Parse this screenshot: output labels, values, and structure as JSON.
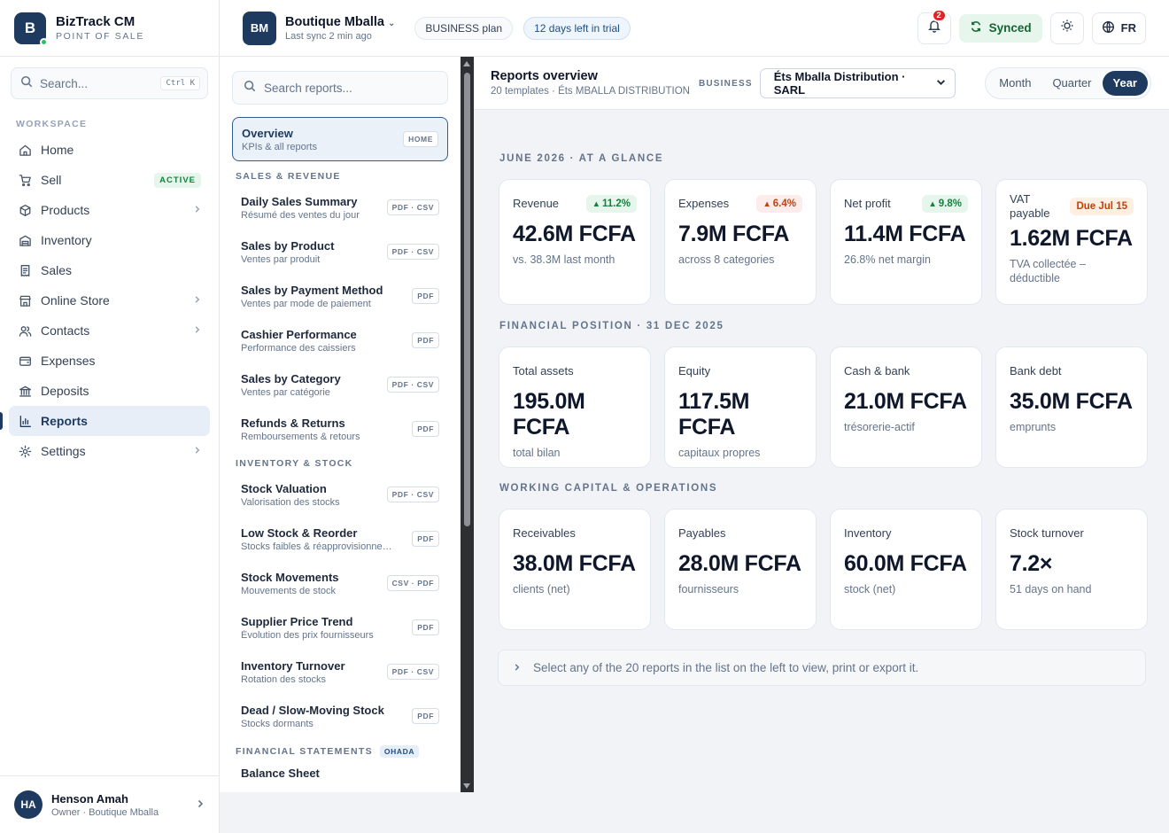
{
  "brand": {
    "logo_letter": "B",
    "name": "BizTrack CM",
    "subtitle": "POINT OF SALE"
  },
  "sidebar": {
    "search_placeholder": "Search...",
    "search_shortcut": "Ctrl K",
    "section": "WORKSPACE",
    "items": [
      {
        "label": "Home",
        "icon": "home-icon"
      },
      {
        "label": "Sell",
        "icon": "cart-icon",
        "badge": "ACTIVE"
      },
      {
        "label": "Products",
        "icon": "box-icon",
        "chevron": true
      },
      {
        "label": "Inventory",
        "icon": "warehouse-icon"
      },
      {
        "label": "Sales",
        "icon": "receipt-icon"
      },
      {
        "label": "Online Store",
        "icon": "store-icon",
        "chevron": true
      },
      {
        "label": "Contacts",
        "icon": "users-icon",
        "chevron": true
      },
      {
        "label": "Expenses",
        "icon": "wallet-icon"
      },
      {
        "label": "Deposits",
        "icon": "bank-icon"
      },
      {
        "label": "Reports",
        "icon": "chart-icon",
        "active": true
      },
      {
        "label": "Settings",
        "icon": "gear-icon",
        "chevron": true
      }
    ],
    "user": {
      "initials": "HA",
      "name": "Henson Amah",
      "role": "Owner · Boutique Mballa"
    }
  },
  "topbar": {
    "business_initials": "BM",
    "business_name": "Boutique Mballa",
    "last_sync": "Last sync 2 min ago",
    "plan": "BUSINESS plan",
    "trial": "12 days left in trial",
    "notifications": "2",
    "synced": "Synced",
    "language": "FR"
  },
  "reports_list": {
    "search_placeholder": "Search reports...",
    "overview": {
      "title": "Overview",
      "subtitle": "KPIs & all reports",
      "tag": "HOME"
    },
    "sections": [
      {
        "title": "SALES & REVENUE",
        "items": [
          {
            "title": "Daily Sales Summary",
            "subtitle": "Résumé des ventes du jour",
            "tag": "PDF · CSV"
          },
          {
            "title": "Sales by Product",
            "subtitle": "Ventes par produit",
            "tag": "PDF · CSV"
          },
          {
            "title": "Sales by Payment Method",
            "subtitle": "Ventes par mode de paiement",
            "tag": "PDF"
          },
          {
            "title": "Cashier Performance",
            "subtitle": "Performance des caissiers",
            "tag": "PDF"
          },
          {
            "title": "Sales by Category",
            "subtitle": "Ventes par catégorie",
            "tag": "PDF · CSV"
          },
          {
            "title": "Refunds & Returns",
            "subtitle": "Remboursements & retours",
            "tag": "PDF"
          }
        ]
      },
      {
        "title": "INVENTORY & STOCK",
        "items": [
          {
            "title": "Stock Valuation",
            "subtitle": "Valorisation des stocks",
            "tag": "PDF · CSV"
          },
          {
            "title": "Low Stock & Reorder",
            "subtitle": "Stocks faibles & réapprovisionnement",
            "tag": "PDF"
          },
          {
            "title": "Stock Movements",
            "subtitle": "Mouvements de stock",
            "tag": "CSV · PDF"
          },
          {
            "title": "Supplier Price Trend",
            "subtitle": "Évolution des prix fournisseurs",
            "tag": "PDF"
          },
          {
            "title": "Inventory Turnover",
            "subtitle": "Rotation des stocks",
            "tag": "PDF · CSV"
          },
          {
            "title": "Dead / Slow-Moving Stock",
            "subtitle": "Stocks dormants",
            "tag": "PDF"
          }
        ]
      }
    ],
    "financial_section": {
      "title": "FINANCIAL STATEMENTS",
      "badge": "OHADA",
      "peek": "Balance Sheet"
    }
  },
  "main": {
    "title": "Reports overview",
    "subtitle": "20 templates · Éts MBALLA DISTRIBUTION",
    "business_label": "BUSINESS",
    "business_value": "Éts Mballa Distribution · SARL",
    "periods": [
      "Month",
      "Quarter",
      "Year"
    ],
    "selected_period": "Year",
    "sections": [
      {
        "title": "JUNE 2026 · AT A GLANCE",
        "cards": [
          {
            "label": "Revenue",
            "value": "42.6M FCFA",
            "note": "vs. 38.3M last month",
            "chip": "11.2%",
            "chip_type": "up"
          },
          {
            "label": "Expenses",
            "value": "7.9M FCFA",
            "note": "across 8 categories",
            "chip": "6.4%",
            "chip_type": "down"
          },
          {
            "label": "Net profit",
            "value": "11.4M FCFA",
            "note": "26.8% net margin",
            "chip": "9.8%",
            "chip_type": "up"
          },
          {
            "label": "VAT payable",
            "value": "1.62M FCFA",
            "note": "TVA collectée – déductible",
            "chip": "Due Jul 15",
            "chip_type": "due"
          }
        ]
      },
      {
        "title": "FINANCIAL POSITION · 31 DEC 2025",
        "cards": [
          {
            "label": "Total assets",
            "value": "195.0M FCFA",
            "note": "total bilan"
          },
          {
            "label": "Equity",
            "value": "117.5M FCFA",
            "note": "capitaux propres"
          },
          {
            "label": "Cash & bank",
            "value": "21.0M FCFA",
            "note": "trésorerie-actif"
          },
          {
            "label": "Bank debt",
            "value": "35.0M FCFA",
            "note": "emprunts"
          }
        ]
      },
      {
        "title": "WORKING CAPITAL & OPERATIONS",
        "cards": [
          {
            "label": "Receivables",
            "value": "38.0M FCFA",
            "note": "clients (net)"
          },
          {
            "label": "Payables",
            "value": "28.0M FCFA",
            "note": "fournisseurs"
          },
          {
            "label": "Inventory",
            "value": "60.0M FCFA",
            "note": "stock (net)"
          },
          {
            "label": "Stock turnover",
            "value": "7.2×",
            "note": "51 days on hand"
          }
        ]
      }
    ],
    "hint": "Select any of the 20 reports in the list on the left to view, print or export it."
  }
}
